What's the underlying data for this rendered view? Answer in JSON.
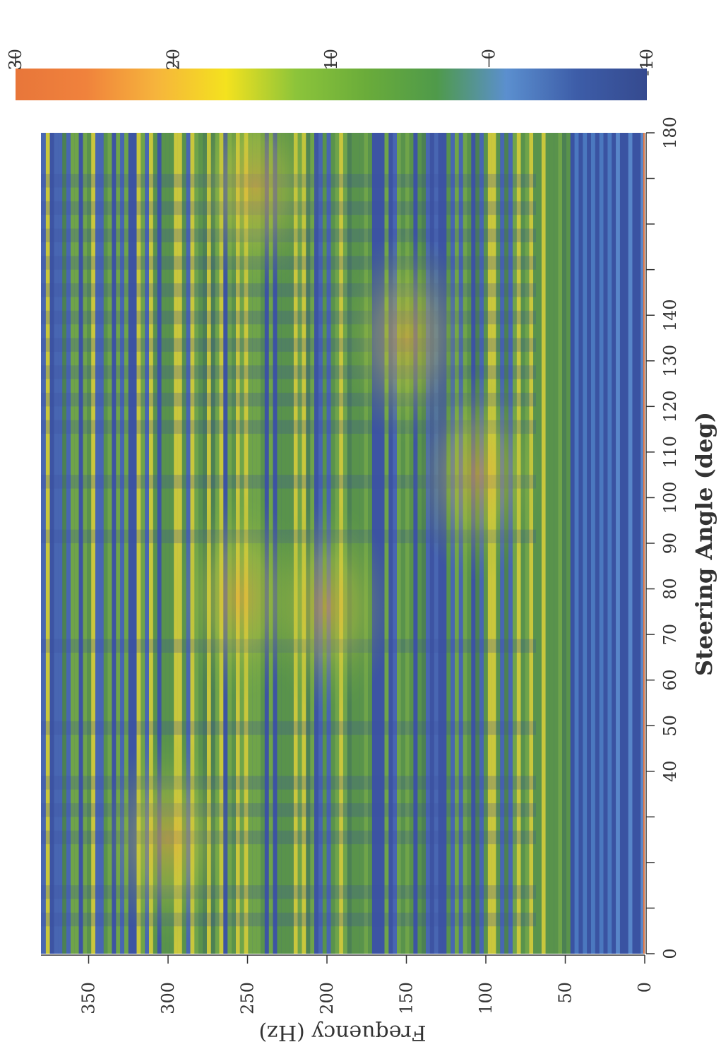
{
  "chart_data": {
    "type": "heatmap",
    "title": "",
    "xlabel": "Steering Angle (deg)",
    "ylabel": "Frequency (Hz)",
    "xlim": [
      0,
      180
    ],
    "ylim": [
      0,
      380
    ],
    "x_ticks": [
      0,
      10,
      20,
      30,
      40,
      50,
      60,
      70,
      80,
      90,
      100,
      110,
      120,
      130,
      140,
      150,
      160,
      170,
      180
    ],
    "x_tick_labels": [
      "0",
      "",
      "",
      "",
      "40",
      "50",
      "60",
      "70",
      "80",
      "90",
      "100",
      "110",
      "120",
      "130",
      "140",
      "",
      "",
      "",
      "180"
    ],
    "y_ticks": [
      0,
      50,
      100,
      150,
      200,
      250,
      300,
      350
    ],
    "y_tick_labels": [
      "0",
      "50",
      "100",
      "150",
      "200",
      "250",
      "300",
      "350"
    ],
    "colorbar": {
      "range": [
        -10,
        30
      ],
      "ticks": [
        -10,
        0,
        10,
        20,
        30
      ],
      "tick_labels": [
        "-10",
        "0",
        "10",
        "20",
        "30"
      ],
      "colors": [
        "#354a8f",
        "#3d5da8",
        "#5b8fcf",
        "#4f9a4a",
        "#6aac3a",
        "#8cc43a",
        "#f4e21e",
        "#f6b43c",
        "#f0823c",
        "#e8763a"
      ]
    },
    "hotspots": [
      {
        "x": 78,
        "y": 255,
        "value": 20
      },
      {
        "x": 76,
        "y": 200,
        "value": 18
      },
      {
        "x": 105,
        "y": 105,
        "value": 16
      },
      {
        "x": 168,
        "y": 245,
        "value": 18
      },
      {
        "x": 25,
        "y": 300,
        "value": 14
      },
      {
        "x": 135,
        "y": 150,
        "value": 12
      }
    ],
    "grid": false,
    "legend": "colorbar-top"
  }
}
